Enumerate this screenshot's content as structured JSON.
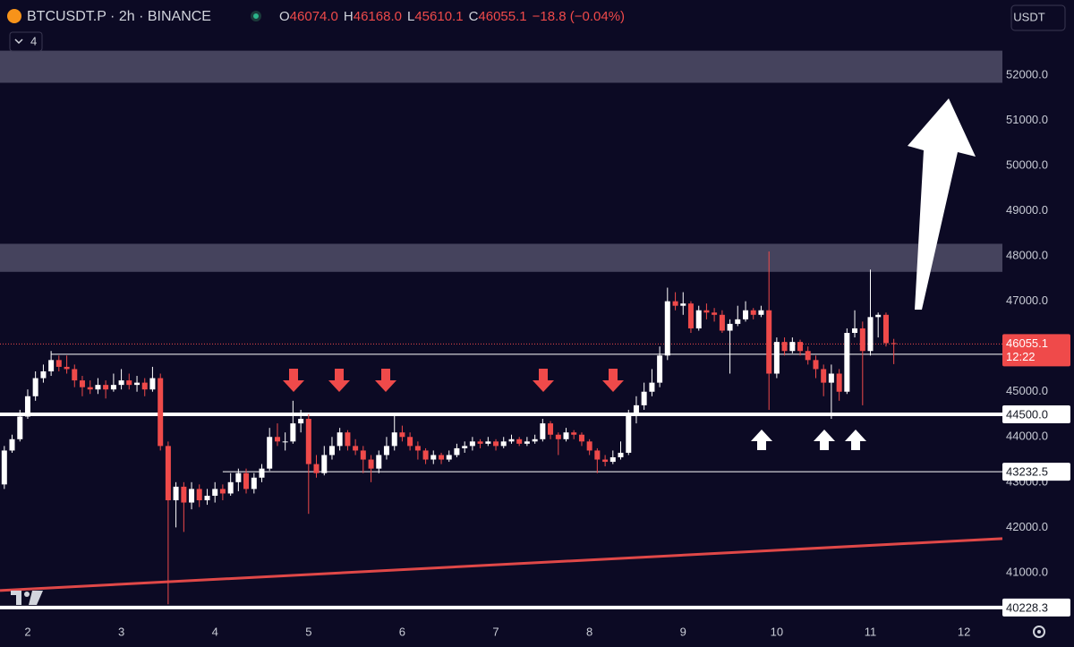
{
  "chart_data": {
    "type": "candlestick",
    "header": {
      "symbol": "BTCUSDT.P · 2h · BINANCE",
      "ohlc": [
        {
          "label": "O",
          "value": "46074.0"
        },
        {
          "label": "H",
          "value": "46168.0"
        },
        {
          "label": "L",
          "value": "45610.1"
        },
        {
          "label": "C",
          "value": "46055.1"
        }
      ],
      "change": "−18.8 (−0.04%)",
      "indicator_count": "4",
      "currency": "USDT"
    },
    "up_color": "#ffffff",
    "down_color": "#ef4a4a",
    "grid": true,
    "xlim": [
      1.704,
      12.41
    ],
    "xticks": [
      2,
      3,
      4,
      5,
      6,
      7,
      8,
      9,
      10,
      11,
      12
    ],
    "ylim": [
      39910,
      53660
    ],
    "yticks": [
      {
        "value": 52000,
        "label": "52000.0"
      },
      {
        "value": 51000,
        "label": "51000.0"
      },
      {
        "value": 50000,
        "label": "50000.0"
      },
      {
        "value": 49000,
        "label": "49000.0"
      },
      {
        "value": 48000,
        "label": "48000.0"
      },
      {
        "value": 47000,
        "label": "47000.0"
      },
      {
        "value": 45000,
        "label": "45000.0"
      },
      {
        "value": 44000,
        "label": "44000.0"
      },
      {
        "value": 43000,
        "label": "43000.0"
      },
      {
        "value": 42000,
        "label": "42000.0"
      },
      {
        "value": 41000,
        "label": "41000.0"
      }
    ],
    "zones": [
      [
        51830,
        52540
      ],
      [
        47650,
        48270
      ]
    ],
    "zone_color": "rgba(190,190,215,0.32)",
    "levels": [
      {
        "value": 45827.7,
        "label": "45827.7",
        "from": 2.25,
        "thick": false
      },
      {
        "value": 44500,
        "label": "44500.0",
        "thick": true
      },
      {
        "value": 43232.5,
        "label": "43232.5",
        "from": 4.083,
        "thick": false
      },
      {
        "value": 40228.3,
        "label": "40228.3",
        "thick": true
      }
    ],
    "trendline": {
      "x": [
        1.704,
        12.41
      ],
      "y": [
        40605,
        41753
      ],
      "color": "#e04848"
    },
    "last_price": {
      "value": 46055.1,
      "label": "46055.1",
      "countdown": "12:22"
    },
    "x": [
      1.75,
      1.833,
      1.917,
      2,
      2.083,
      2.167,
      2.25,
      2.333,
      2.417,
      2.5,
      2.583,
      2.667,
      2.75,
      2.833,
      2.917,
      3,
      3.083,
      3.167,
      3.25,
      3.333,
      3.417,
      3.5,
      3.583,
      3.667,
      3.75,
      3.833,
      3.917,
      4,
      4.083,
      4.167,
      4.25,
      4.333,
      4.417,
      4.5,
      4.583,
      4.667,
      4.75,
      4.833,
      4.917,
      5,
      5.083,
      5.167,
      5.25,
      5.333,
      5.417,
      5.5,
      5.583,
      5.667,
      5.75,
      5.833,
      5.917,
      6,
      6.083,
      6.167,
      6.25,
      6.333,
      6.417,
      6.5,
      6.583,
      6.667,
      6.75,
      6.833,
      6.917,
      7,
      7.083,
      7.167,
      7.25,
      7.333,
      7.417,
      7.5,
      7.583,
      7.667,
      7.75,
      7.833,
      7.917,
      8,
      8.083,
      8.167,
      8.25,
      8.333,
      8.417,
      8.5,
      8.583,
      8.667,
      8.75,
      8.833,
      8.917,
      9,
      9.083,
      9.167,
      9.25,
      9.333,
      9.417,
      9.5,
      9.583,
      9.667,
      9.75,
      9.833,
      9.917,
      10,
      10.083,
      10.167,
      10.25,
      10.333,
      10.417,
      10.5,
      10.583,
      10.667,
      10.75,
      10.833,
      10.917,
      11,
      11.083,
      11.167,
      11.25
    ],
    "ohlc": [
      [
        42950,
        43800,
        42850,
        43700
      ],
      [
        43700,
        44050,
        43650,
        43950
      ],
      [
        43950,
        44600,
        43900,
        44450
      ],
      [
        44450,
        45050,
        44400,
        44900
      ],
      [
        44900,
        45450,
        44800,
        45300
      ],
      [
        45300,
        45600,
        45200,
        45450
      ],
      [
        45450,
        45900,
        45350,
        45700
      ],
      [
        45700,
        45800,
        45450,
        45550
      ],
      [
        45550,
        45800,
        45400,
        45500
      ],
      [
        45500,
        45600,
        45100,
        45250
      ],
      [
        45250,
        45350,
        44900,
        45100
      ],
      [
        45100,
        45250,
        44950,
        45050
      ],
      [
        45050,
        45300,
        44950,
        45150
      ],
      [
        45150,
        45250,
        44850,
        45050
      ],
      [
        45050,
        45400,
        45000,
        45150
      ],
      [
        45150,
        45500,
        45050,
        45250
      ],
      [
        45250,
        45400,
        45050,
        45150
      ],
      [
        45150,
        45350,
        45000,
        45200
      ],
      [
        45200,
        45300,
        44900,
        45050
      ],
      [
        45050,
        45550,
        45000,
        45300
      ],
      [
        45300,
        45400,
        43700,
        43800
      ],
      [
        43800,
        43900,
        40300,
        42600
      ],
      [
        42600,
        43000,
        42000,
        42900
      ],
      [
        42900,
        43000,
        41900,
        42550
      ],
      [
        42550,
        43000,
        42400,
        42850
      ],
      [
        42850,
        42950,
        42450,
        42600
      ],
      [
        42600,
        42850,
        42500,
        42700
      ],
      [
        42700,
        43000,
        42550,
        42850
      ],
      [
        42850,
        42950,
        42600,
        42750
      ],
      [
        42750,
        43200,
        42700,
        43000
      ],
      [
        43000,
        43300,
        42800,
        43200
      ],
      [
        43200,
        43300,
        42750,
        42850
      ],
      [
        42850,
        43200,
        42750,
        43100
      ],
      [
        43100,
        43400,
        43000,
        43300
      ],
      [
        43300,
        44200,
        43250,
        44000
      ],
      [
        44000,
        44300,
        43800,
        43900
      ],
      [
        43900,
        44100,
        43700,
        43900
      ],
      [
        43900,
        44800,
        43850,
        44300
      ],
      [
        44300,
        44600,
        44100,
        44400
      ],
      [
        44400,
        44500,
        42300,
        43400
      ],
      [
        43400,
        43600,
        43100,
        43200
      ],
      [
        43200,
        43800,
        43150,
        43600
      ],
      [
        43600,
        44000,
        43500,
        43800
      ],
      [
        43800,
        44200,
        43700,
        44100
      ],
      [
        44100,
        44150,
        43700,
        43800
      ],
      [
        43800,
        43950,
        43600,
        43700
      ],
      [
        43700,
        43800,
        43200,
        43500
      ],
      [
        43500,
        43600,
        43000,
        43300
      ],
      [
        43300,
        43700,
        43200,
        43600
      ],
      [
        43600,
        44000,
        43500,
        43800
      ],
      [
        43800,
        44500,
        43700,
        44100
      ],
      [
        44100,
        44250,
        43900,
        44000
      ],
      [
        44000,
        44100,
        43700,
        43800
      ],
      [
        43800,
        43900,
        43500,
        43700
      ],
      [
        43700,
        43750,
        43400,
        43500
      ],
      [
        43500,
        43700,
        43400,
        43600
      ],
      [
        43600,
        43650,
        43400,
        43500
      ],
      [
        43500,
        43700,
        43450,
        43600
      ],
      [
        43600,
        43850,
        43550,
        43750
      ],
      [
        43750,
        43900,
        43650,
        43800
      ],
      [
        43800,
        44000,
        43700,
        43900
      ],
      [
        43900,
        43950,
        43750,
        43850
      ],
      [
        43850,
        44000,
        43800,
        43900
      ],
      [
        43900,
        43950,
        43700,
        43800
      ],
      [
        43800,
        44000,
        43750,
        43900
      ],
      [
        43900,
        44050,
        43850,
        43950
      ],
      [
        43950,
        44000,
        43800,
        43850
      ],
      [
        43850,
        44000,
        43800,
        43900
      ],
      [
        43900,
        44050,
        43850,
        43950
      ],
      [
        43950,
        44400,
        43900,
        44300
      ],
      [
        44300,
        44350,
        43950,
        44050
      ],
      [
        44050,
        44100,
        43600,
        43950
      ],
      [
        43950,
        44200,
        43900,
        44100
      ],
      [
        44100,
        44150,
        43950,
        44050
      ],
      [
        44050,
        44100,
        43800,
        43900
      ],
      [
        43900,
        43950,
        43600,
        43700
      ],
      [
        43700,
        43750,
        43200,
        43500
      ],
      [
        43500,
        43600,
        43350,
        43450
      ],
      [
        43450,
        43700,
        43400,
        43550
      ],
      [
        43550,
        43900,
        43500,
        43650
      ],
      [
        43650,
        44600,
        43600,
        44500
      ],
      [
        44500,
        44900,
        44300,
        44700
      ],
      [
        44700,
        45200,
        44600,
        45000
      ],
      [
        45000,
        45500,
        44900,
        45200
      ],
      [
        45200,
        46000,
        45100,
        45800
      ],
      [
        45800,
        47300,
        45700,
        47000
      ],
      [
        47000,
        47200,
        46800,
        46900
      ],
      [
        46900,
        47200,
        46700,
        46950
      ],
      [
        46950,
        47000,
        46300,
        46400
      ],
      [
        46400,
        46900,
        46350,
        46800
      ],
      [
        46800,
        46950,
        46600,
        46750
      ],
      [
        46750,
        46850,
        46550,
        46700
      ],
      [
        46700,
        46800,
        46300,
        46350
      ],
      [
        46350,
        46600,
        45400,
        46500
      ],
      [
        46500,
        46900,
        46450,
        46600
      ],
      [
        46600,
        47000,
        46550,
        46800
      ],
      [
        46800,
        46850,
        46600,
        46700
      ],
      [
        46700,
        46900,
        46650,
        46800
      ],
      [
        46800,
        48100,
        44600,
        45400
      ],
      [
        45400,
        46200,
        45300,
        46100
      ],
      [
        46100,
        46200,
        45800,
        45900
      ],
      [
        45900,
        46200,
        45850,
        46100
      ],
      [
        46100,
        46150,
        45800,
        45900
      ],
      [
        45900,
        46000,
        45600,
        45700
      ],
      [
        45700,
        45800,
        45300,
        45500
      ],
      [
        45500,
        45600,
        44900,
        45200
      ],
      [
        45200,
        45600,
        44400,
        45400
      ],
      [
        45400,
        45500,
        44800,
        45000
      ],
      [
        45000,
        46400,
        44950,
        46300
      ],
      [
        46300,
        46800,
        46200,
        46400
      ],
      [
        46400,
        46550,
        44700,
        45900
      ],
      [
        45900,
        47700,
        45800,
        46650
      ],
      [
        46650,
        46750,
        46200,
        46700
      ],
      [
        46700,
        46750,
        46000,
        46074
      ],
      [
        46074,
        46168,
        45610.1,
        46055.1
      ]
    ]
  }
}
